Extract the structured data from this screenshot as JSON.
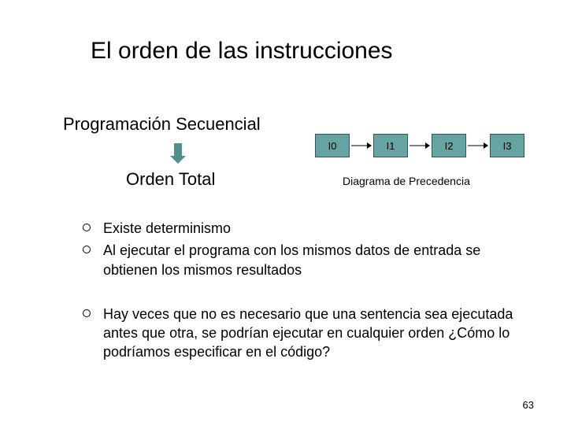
{
  "title": "El orden de las instrucciones",
  "subtitle1": "Programación Secuencial",
  "subtitle2": "Orden Total",
  "diagram": {
    "nodes": [
      "I0",
      "I1",
      "I2",
      "I3"
    ],
    "node_bg": "#66a3a3",
    "node_border": "#2a5a5a",
    "node_text_color": "#000000",
    "node_fontsize": 13,
    "arrow_color": "#000000",
    "label": "Diagrama de Precedencia",
    "label_fontsize": 14
  },
  "down_arrow_color": "#4f8f8f",
  "bullets": [
    "Existe determinismo",
    "Al ejecutar el programa con los mismos datos de entrada se obtienen los mismos resultados",
    "",
    "Hay veces que no es necesario que una sentencia sea ejecutada antes que otra, se podrían ejecutar en cualquier orden ¿Cómo lo podríamos especificar en el código?"
  ],
  "bullet_fontsize": 18,
  "page_number": "63",
  "background_color": "#ffffff",
  "text_color": "#000000",
  "title_fontsize": 30,
  "subtitle_fontsize": 22
}
